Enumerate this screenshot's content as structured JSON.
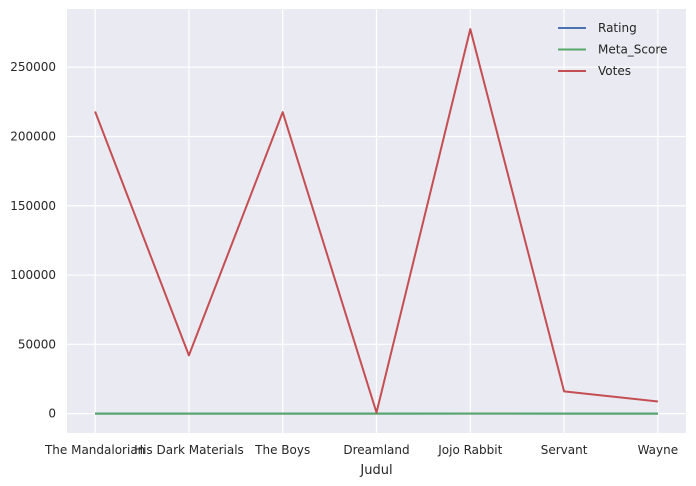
{
  "chart_data": {
    "type": "line",
    "xlabel": "Judul",
    "ylabel": "",
    "categories": [
      "The Mandalorian",
      "His Dark Materials",
      "The Boys",
      "Dreamland",
      "Jojo Rabbit",
      "Servant",
      "Wayne"
    ],
    "y_ticks": [
      0,
      50000,
      100000,
      150000,
      200000,
      250000
    ],
    "ylim": [
      -14000,
      292000
    ],
    "grid": true,
    "legend_position": "top-right",
    "background_color": "#EAEAF2",
    "series": [
      {
        "name": "Rating",
        "color": "#4C72B0",
        "values": [
          8.8,
          7.9,
          8.7,
          5.9,
          7.9,
          7.5,
          8.5
        ]
      },
      {
        "name": "Meta_Score",
        "color": "#55A868",
        "values": [
          0,
          0,
          0,
          0,
          58,
          0,
          0
        ]
      },
      {
        "name": "Votes",
        "color": "#C44E52",
        "values": [
          218000,
          42000,
          217500,
          700,
          277500,
          16000,
          8700
        ]
      }
    ]
  }
}
